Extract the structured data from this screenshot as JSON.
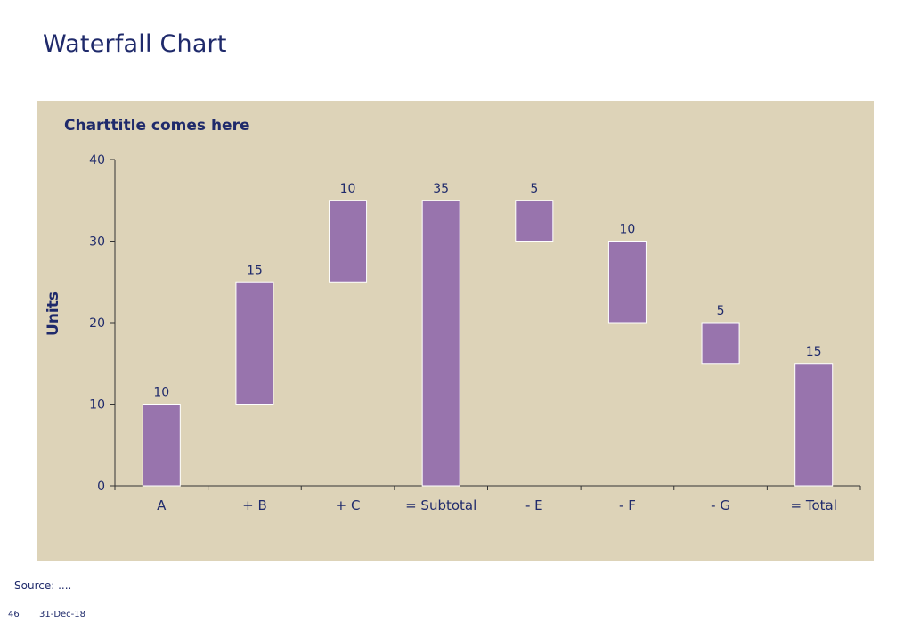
{
  "slide": {
    "title": "Waterfall Chart",
    "source": "Source: ....",
    "page_number": "46",
    "date": "31-Dec-18"
  },
  "colors": {
    "bar": "#9874ad",
    "panel": "#ddd3b8",
    "text": "#1f2a6b"
  },
  "chart_data": {
    "type": "bar",
    "subtype": "waterfall",
    "title": "Charttitle comes here",
    "ylabel": "Units",
    "xlabel": "",
    "ylim": [
      0,
      40
    ],
    "yticks": [
      0,
      10,
      20,
      30,
      40
    ],
    "grid": false,
    "categories": [
      "A",
      "+ B",
      "+ C",
      "= Subtotal",
      "- E",
      "- F",
      "- G",
      "= Total"
    ],
    "bars": [
      {
        "category": "A",
        "start": 0,
        "end": 10,
        "label": "10"
      },
      {
        "category": "+ B",
        "start": 10,
        "end": 25,
        "label": "15"
      },
      {
        "category": "+ C",
        "start": 25,
        "end": 35,
        "label": "10"
      },
      {
        "category": "= Subtotal",
        "start": 0,
        "end": 35,
        "label": "35"
      },
      {
        "category": "- E",
        "start": 30,
        "end": 35,
        "label": "5"
      },
      {
        "category": "- F",
        "start": 20,
        "end": 30,
        "label": "10"
      },
      {
        "category": "- G",
        "start": 15,
        "end": 20,
        "label": "5"
      },
      {
        "category": "= Total",
        "start": 0,
        "end": 15,
        "label": "15"
      }
    ]
  }
}
